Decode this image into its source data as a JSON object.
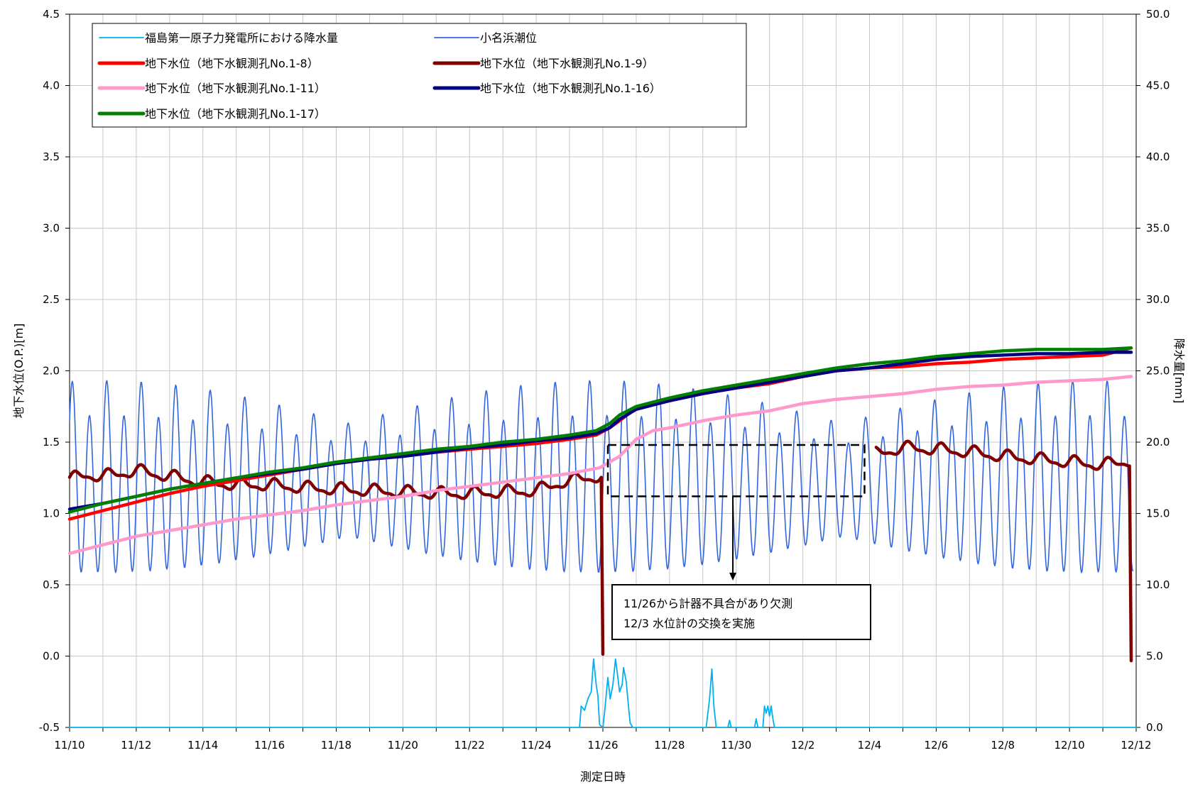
{
  "chart_data": {
    "type": "line",
    "xlabel": "測定日時",
    "ylabel_left": "地下水位(O.P.)[m]",
    "ylabel_right": "降水量[mm]",
    "ylim_left": [
      -0.5,
      4.5
    ],
    "ylim_right": [
      0.0,
      50.0
    ],
    "xlim_days": [
      0,
      32
    ],
    "grid": true,
    "legend_placement": "top-left",
    "x_ticks": [
      "11/10",
      "11/12",
      "11/14",
      "11/16",
      "11/18",
      "11/20",
      "11/22",
      "11/24",
      "11/26",
      "11/28",
      "11/30",
      "12/2",
      "12/4",
      "12/6",
      "12/8",
      "12/10",
      "12/12"
    ],
    "y_left_ticks": [
      "-0.5",
      "0.0",
      "0.5",
      "1.0",
      "1.5",
      "2.0",
      "2.5",
      "3.0",
      "3.5",
      "4.0",
      "4.5"
    ],
    "y_right_ticks": [
      "0.0",
      "5.0",
      "10.0",
      "15.0",
      "20.0",
      "25.0",
      "30.0",
      "35.0",
      "40.0",
      "45.0",
      "50.0"
    ],
    "series": [
      {
        "name": "福島第一原子力発電所における降水量",
        "color": "#00b0f0",
        "axis": "right",
        "style": "thin",
        "points": [
          [
            0,
            0
          ],
          [
            15.3,
            0
          ],
          [
            15.35,
            1.5
          ],
          [
            15.45,
            1.2
          ],
          [
            15.55,
            2.0
          ],
          [
            15.65,
            2.5
          ],
          [
            15.72,
            4.8
          ],
          [
            15.8,
            3.0
          ],
          [
            15.85,
            2.2
          ],
          [
            15.9,
            0.2
          ],
          [
            16.0,
            0
          ],
          [
            16.05,
            1.0
          ],
          [
            16.15,
            3.5
          ],
          [
            16.22,
            2.0
          ],
          [
            16.3,
            3.0
          ],
          [
            16.38,
            4.8
          ],
          [
            16.45,
            3.5
          ],
          [
            16.5,
            2.5
          ],
          [
            16.58,
            3.0
          ],
          [
            16.62,
            4.2
          ],
          [
            16.7,
            3.2
          ],
          [
            16.78,
            1.2
          ],
          [
            16.82,
            0.3
          ],
          [
            16.9,
            0
          ],
          [
            19.1,
            0
          ],
          [
            19.2,
            2.0
          ],
          [
            19.27,
            4.1
          ],
          [
            19.33,
            1.5
          ],
          [
            19.4,
            0
          ],
          [
            19.75,
            0
          ],
          [
            19.8,
            0.5
          ],
          [
            19.85,
            0
          ],
          [
            20.55,
            0
          ],
          [
            20.6,
            0.6
          ],
          [
            20.65,
            0
          ],
          [
            20.8,
            0
          ],
          [
            20.85,
            1.5
          ],
          [
            20.9,
            1.0
          ],
          [
            20.95,
            1.5
          ],
          [
            21.0,
            0.8
          ],
          [
            21.05,
            1.5
          ],
          [
            21.1,
            0.6
          ],
          [
            21.15,
            0
          ],
          [
            32,
            0
          ]
        ]
      },
      {
        "name": "小名浜潮位",
        "color": "#3366dd",
        "axis": "left",
        "style": "tide",
        "points": [
          [
            0,
            1.2
          ],
          [
            11.5,
            1.2
          ],
          [
            31.9,
            1.2
          ]
        ]
      },
      {
        "name": "地下水位（地下水観測孔No.1-8）",
        "color": "#ff0000",
        "axis": "left",
        "style": "thick",
        "points": [
          [
            0,
            0.96
          ],
          [
            1,
            1.02
          ],
          [
            2,
            1.08
          ],
          [
            3,
            1.14
          ],
          [
            4,
            1.19
          ],
          [
            5,
            1.23
          ],
          [
            6,
            1.27
          ],
          [
            7,
            1.31
          ],
          [
            8,
            1.35
          ],
          [
            9,
            1.38
          ],
          [
            10,
            1.41
          ],
          [
            11,
            1.43
          ],
          [
            12,
            1.45
          ],
          [
            13,
            1.47
          ],
          [
            14,
            1.49
          ],
          [
            15,
            1.52
          ],
          [
            15.8,
            1.55
          ],
          [
            16.2,
            1.6
          ],
          [
            16.5,
            1.65
          ],
          [
            17,
            1.74
          ],
          [
            17.5,
            1.77
          ],
          [
            18,
            1.79
          ],
          [
            19,
            1.84
          ],
          [
            20,
            1.88
          ],
          [
            21,
            1.91
          ],
          [
            22,
            1.96
          ],
          [
            23,
            2.0
          ],
          [
            24,
            2.02
          ],
          [
            25,
            2.03
          ],
          [
            26,
            2.05
          ],
          [
            27,
            2.06
          ],
          [
            28,
            2.08
          ],
          [
            29,
            2.09
          ],
          [
            30,
            2.1
          ],
          [
            31,
            2.11
          ],
          [
            31.85,
            2.16
          ]
        ]
      },
      {
        "name": "地下水位（地下水観測孔No.1-9）",
        "color": "#800000",
        "axis": "left",
        "style": "wavy",
        "points": [
          [
            0,
            1.24
          ],
          [
            0.5,
            1.27
          ],
          [
            1,
            1.26
          ],
          [
            2,
            1.3
          ],
          [
            3,
            1.26
          ],
          [
            4,
            1.22
          ],
          [
            5,
            1.2
          ],
          [
            6,
            1.2
          ],
          [
            7,
            1.18
          ],
          [
            8,
            1.17
          ],
          [
            9,
            1.16
          ],
          [
            10,
            1.15
          ],
          [
            11,
            1.14
          ],
          [
            12,
            1.14
          ],
          [
            13,
            1.15
          ],
          [
            14,
            1.16
          ],
          [
            14.8,
            1.22
          ],
          [
            15.5,
            1.25
          ],
          [
            16,
            1.26
          ],
          [
            null,
            null
          ],
          [
            24.2,
            1.42
          ],
          [
            25,
            1.46
          ],
          [
            26,
            1.45
          ],
          [
            27,
            1.43
          ],
          [
            28,
            1.4
          ],
          [
            29,
            1.38
          ],
          [
            30,
            1.36
          ],
          [
            31,
            1.34
          ],
          [
            31.85,
            1.37
          ]
        ]
      },
      {
        "name": "地下水位（地下水観測孔No.1-11）",
        "color": "#ff99cc",
        "axis": "left",
        "style": "thick",
        "points": [
          [
            0,
            0.72
          ],
          [
            1,
            0.78
          ],
          [
            2,
            0.84
          ],
          [
            3,
            0.88
          ],
          [
            4,
            0.92
          ],
          [
            5,
            0.96
          ],
          [
            6,
            0.99
          ],
          [
            7,
            1.02
          ],
          [
            8,
            1.06
          ],
          [
            9,
            1.09
          ],
          [
            10,
            1.12
          ],
          [
            11,
            1.16
          ],
          [
            12,
            1.19
          ],
          [
            13,
            1.22
          ],
          [
            14,
            1.25
          ],
          [
            15,
            1.28
          ],
          [
            15.9,
            1.32
          ],
          [
            16.5,
            1.4
          ],
          [
            17,
            1.52
          ],
          [
            17.5,
            1.58
          ],
          [
            18,
            1.6
          ],
          [
            19,
            1.65
          ],
          [
            20,
            1.69
          ],
          [
            21,
            1.72
          ],
          [
            22,
            1.77
          ],
          [
            23,
            1.8
          ],
          [
            24,
            1.82
          ],
          [
            25,
            1.84
          ],
          [
            26,
            1.87
          ],
          [
            27,
            1.89
          ],
          [
            28,
            1.9
          ],
          [
            29,
            1.92
          ],
          [
            30,
            1.93
          ],
          [
            31,
            1.94
          ],
          [
            31.85,
            1.96
          ]
        ]
      },
      {
        "name": "地下水位（地下水観測孔No.1-16）",
        "color": "#000080",
        "axis": "left",
        "style": "thick",
        "points": [
          [
            0,
            1.03
          ],
          [
            1,
            1.07
          ],
          [
            2,
            1.12
          ],
          [
            3,
            1.17
          ],
          [
            4,
            1.21
          ],
          [
            5,
            1.25
          ],
          [
            6,
            1.28
          ],
          [
            7,
            1.31
          ],
          [
            8,
            1.35
          ],
          [
            9,
            1.38
          ],
          [
            10,
            1.4
          ],
          [
            11,
            1.43
          ],
          [
            12,
            1.46
          ],
          [
            13,
            1.48
          ],
          [
            14,
            1.51
          ],
          [
            15,
            1.53
          ],
          [
            15.8,
            1.56
          ],
          [
            16.2,
            1.6
          ],
          [
            16.5,
            1.66
          ],
          [
            17,
            1.73
          ],
          [
            17.5,
            1.76
          ],
          [
            18,
            1.79
          ],
          [
            19,
            1.84
          ],
          [
            20,
            1.88
          ],
          [
            21,
            1.92
          ],
          [
            22,
            1.96
          ],
          [
            23,
            2.0
          ],
          [
            24,
            2.02
          ],
          [
            25,
            2.05
          ],
          [
            26,
            2.08
          ],
          [
            27,
            2.1
          ],
          [
            28,
            2.11
          ],
          [
            29,
            2.12
          ],
          [
            30,
            2.12
          ],
          [
            31,
            2.13
          ],
          [
            31.85,
            2.13
          ]
        ]
      },
      {
        "name": "地下水位（地下水観測孔No.1-17）",
        "color": "#008000",
        "axis": "left",
        "style": "thick",
        "points": [
          [
            0,
            1.01
          ],
          [
            1,
            1.07
          ],
          [
            2,
            1.12
          ],
          [
            3,
            1.17
          ],
          [
            4,
            1.21
          ],
          [
            5,
            1.25
          ],
          [
            6,
            1.29
          ],
          [
            7,
            1.32
          ],
          [
            8,
            1.36
          ],
          [
            9,
            1.39
          ],
          [
            10,
            1.42
          ],
          [
            11,
            1.45
          ],
          [
            12,
            1.47
          ],
          [
            13,
            1.5
          ],
          [
            14,
            1.52
          ],
          [
            15,
            1.55
          ],
          [
            15.8,
            1.58
          ],
          [
            16.2,
            1.63
          ],
          [
            16.5,
            1.69
          ],
          [
            17,
            1.75
          ],
          [
            17.5,
            1.78
          ],
          [
            18,
            1.81
          ],
          [
            19,
            1.86
          ],
          [
            20,
            1.9
          ],
          [
            21,
            1.94
          ],
          [
            22,
            1.98
          ],
          [
            23,
            2.02
          ],
          [
            24,
            2.05
          ],
          [
            25,
            2.07
          ],
          [
            26,
            2.1
          ],
          [
            27,
            2.12
          ],
          [
            28,
            2.14
          ],
          [
            29,
            2.15
          ],
          [
            30,
            2.15
          ],
          [
            31,
            2.15
          ],
          [
            31.85,
            2.16
          ]
        ]
      }
    ]
  },
  "annotation": {
    "line1": "11/26から計器不具合があり欠測",
    "line2": "12/3 水位計の交換を実施"
  }
}
